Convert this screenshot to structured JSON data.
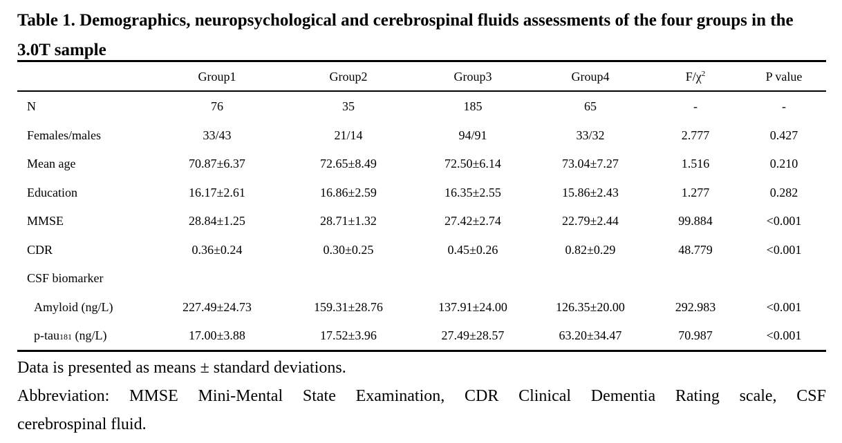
{
  "title": "Table 1. Demographics, neuropsychological and cerebrospinal fluids assessments of the four groups in the 3.0T sample",
  "columns": [
    "",
    "Group1",
    "Group2",
    "Group3",
    "Group4",
    "F/χ",
    "P value"
  ],
  "chi_sup": "2",
  "rows": [
    {
      "label": "N",
      "values": [
        "76",
        "35",
        "185",
        "65",
        "-",
        "-"
      ]
    },
    {
      "label": "Females/males",
      "values": [
        "33/43",
        "21/14",
        "94/91",
        "33/32",
        "2.777",
        "0.427"
      ]
    },
    {
      "label": "Mean age",
      "values": [
        "70.87±6.37",
        "72.65±8.49",
        "72.50±6.14",
        "73.04±7.27",
        "1.516",
        "0.210"
      ]
    },
    {
      "label": "Education",
      "values": [
        "16.17±2.61",
        "16.86±2.59",
        "16.35±2.55",
        "15.86±2.43",
        "1.277",
        "0.282"
      ]
    },
    {
      "label": "MMSE",
      "values": [
        "28.84±1.25",
        "28.71±1.32",
        "27.42±2.74",
        "22.79±2.44",
        "99.884",
        "<0.001"
      ]
    },
    {
      "label": "CDR",
      "values": [
        "0.36±0.24",
        "0.30±0.25",
        "0.45±0.26",
        "0.82±0.29",
        "48.779",
        "<0.001"
      ]
    },
    {
      "label": "CSF biomarker",
      "values": [
        "",
        "",
        "",
        "",
        "",
        ""
      ]
    },
    {
      "label": "Amyloid (ng/L)",
      "values": [
        "227.49±24.73",
        "159.31±28.76",
        "137.91±24.00",
        "126.35±20.00",
        "292.983",
        "<0.001"
      ]
    },
    {
      "label_prefix": "p-tau",
      "label_sub": "181",
      "label_suffix": " (ng/L)",
      "values": [
        "17.00±3.88",
        "17.52±3.96",
        "27.49±28.57",
        "63.20±34.47",
        "70.987",
        "<0.001"
      ]
    }
  ],
  "notes": {
    "line1": "Data is presented as means ± standard deviations.",
    "line2": "Abbreviation: MMSE Mini-Mental State Examination, CDR Clinical Dementia Rating scale, CSF",
    "line3": "cerebrospinal fluid."
  }
}
